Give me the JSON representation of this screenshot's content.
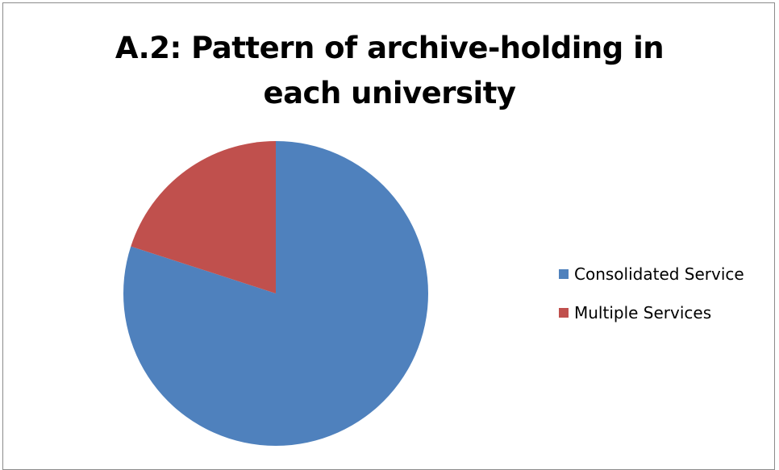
{
  "chart_data": {
    "type": "pie",
    "title": "A.2: Pattern of archive-holding in each university",
    "title_lines": [
      "A.2: Pattern of archive-holding in",
      "each university"
    ],
    "categories": [
      "Consolidated Service",
      "Multiple Services"
    ],
    "values": [
      80,
      20
    ],
    "colors": [
      "#4F81BD",
      "#C0504D"
    ],
    "legend_placement": "right"
  }
}
